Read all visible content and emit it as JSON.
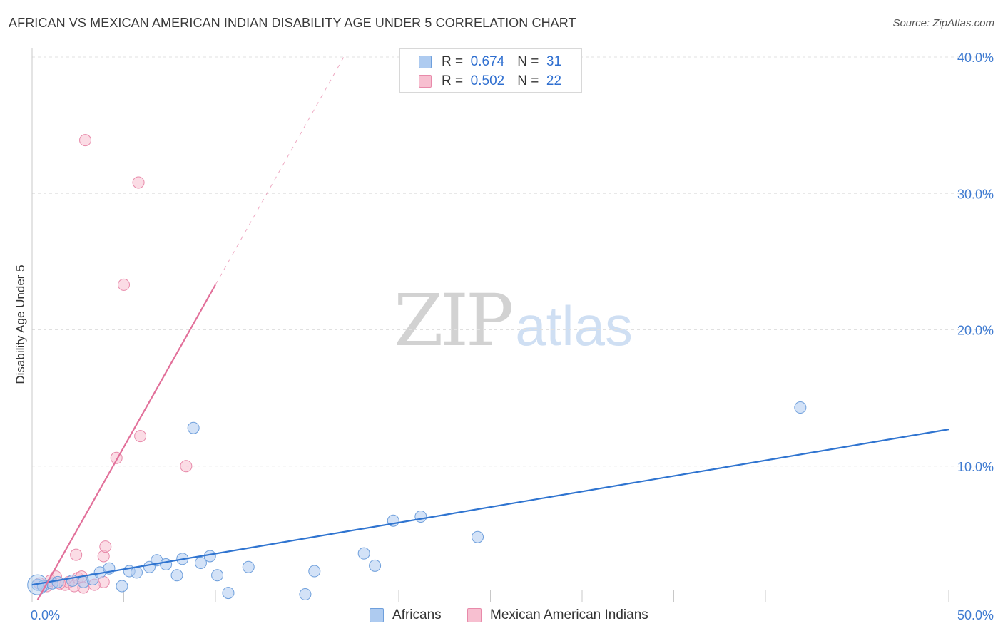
{
  "header": {
    "title": "AFRICAN VS MEXICAN AMERICAN INDIAN DISABILITY AGE UNDER 5 CORRELATION CHART",
    "source": "Source: ZipAtlas.com"
  },
  "watermark": {
    "zip": "ZIP",
    "atlas": "atlas"
  },
  "legend": {
    "africans": {
      "r_label": "R =",
      "r_value": "0.674",
      "n_label": "N =",
      "n_value": "31"
    },
    "mexican": {
      "r_label": "R =",
      "r_value": "0.502",
      "n_label": "N =",
      "n_value": "22"
    }
  },
  "colors": {
    "blue_fill": "#aecbf0",
    "blue_stroke": "#6e9fdc",
    "blue_line": "#2f74d0",
    "pink_fill": "#f7bfd0",
    "pink_stroke": "#e88aaa",
    "pink_line": "#e2709a",
    "grid": "#e0e0e0",
    "tick_label": "#3f7bd1",
    "axis_label": "#333333"
  },
  "chart_data": {
    "type": "scatter",
    "title": "AFRICAN VS MEXICAN AMERICAN INDIAN DISABILITY AGE UNDER 5 CORRELATION CHART",
    "xlabel": "",
    "ylabel": "Disability Age Under 5",
    "xlim": [
      0,
      50
    ],
    "ylim": [
      0,
      40
    ],
    "x_tick_labels": [
      "0.0%",
      "50.0%"
    ],
    "y_ticks": [
      10,
      20,
      30,
      40
    ],
    "y_tick_labels": [
      "10.0%",
      "20.0%",
      "30.0%",
      "40.0%"
    ],
    "series": [
      {
        "name": "Africans",
        "r": 0.674,
        "n": 31,
        "points": [
          [
            0.3,
            1.3
          ],
          [
            0.6,
            1.2
          ],
          [
            1.1,
            1.4
          ],
          [
            1.4,
            1.5
          ],
          [
            2.2,
            1.6
          ],
          [
            2.8,
            1.5
          ],
          [
            3.3,
            1.7
          ],
          [
            3.7,
            2.2
          ],
          [
            4.2,
            2.5
          ],
          [
            4.9,
            1.2
          ],
          [
            5.3,
            2.3
          ],
          [
            5.7,
            2.2
          ],
          [
            6.4,
            2.6
          ],
          [
            6.8,
            3.1
          ],
          [
            7.3,
            2.8
          ],
          [
            7.9,
            2.0
          ],
          [
            8.2,
            3.2
          ],
          [
            9.2,
            2.9
          ],
          [
            8.8,
            12.8
          ],
          [
            9.7,
            3.4
          ],
          [
            10.1,
            2.0
          ],
          [
            10.7,
            0.7
          ],
          [
            11.8,
            2.6
          ],
          [
            14.9,
            0.6
          ],
          [
            15.4,
            2.3
          ],
          [
            18.1,
            3.6
          ],
          [
            18.7,
            2.7
          ],
          [
            19.7,
            6.0
          ],
          [
            21.2,
            6.3
          ],
          [
            24.3,
            4.8
          ],
          [
            41.9,
            14.3
          ]
        ],
        "trend": {
          "x0": 0,
          "y0": 1.3,
          "x1": 50,
          "y1": 12.7
        }
      },
      {
        "name": "Mexican American Indians",
        "r": 0.502,
        "n": 22,
        "points": [
          [
            0.4,
            1.4
          ],
          [
            0.8,
            1.2
          ],
          [
            1.0,
            1.6
          ],
          [
            1.3,
            1.9
          ],
          [
            1.8,
            1.3
          ],
          [
            2.0,
            1.5
          ],
          [
            2.3,
            1.2
          ],
          [
            2.5,
            1.8
          ],
          [
            2.7,
            1.9
          ],
          [
            2.8,
            1.1
          ],
          [
            2.4,
            3.5
          ],
          [
            3.9,
            1.5
          ],
          [
            3.9,
            3.4
          ],
          [
            4.0,
            4.1
          ],
          [
            2.9,
            33.9
          ],
          [
            4.6,
            10.6
          ],
          [
            5.0,
            23.3
          ],
          [
            5.8,
            30.8
          ],
          [
            5.9,
            12.2
          ],
          [
            8.4,
            10.0
          ],
          [
            3.4,
            1.3
          ],
          [
            1.5,
            1.4
          ]
        ],
        "trend": {
          "x0": 0.3,
          "y0": 0.2,
          "x1": 10.0,
          "y1": 23.3,
          "dash_x1": 17.0,
          "dash_y1": 40.0
        }
      }
    ]
  },
  "bottom_legend": {
    "africans": "Africans",
    "mexican": "Mexican American Indians"
  }
}
